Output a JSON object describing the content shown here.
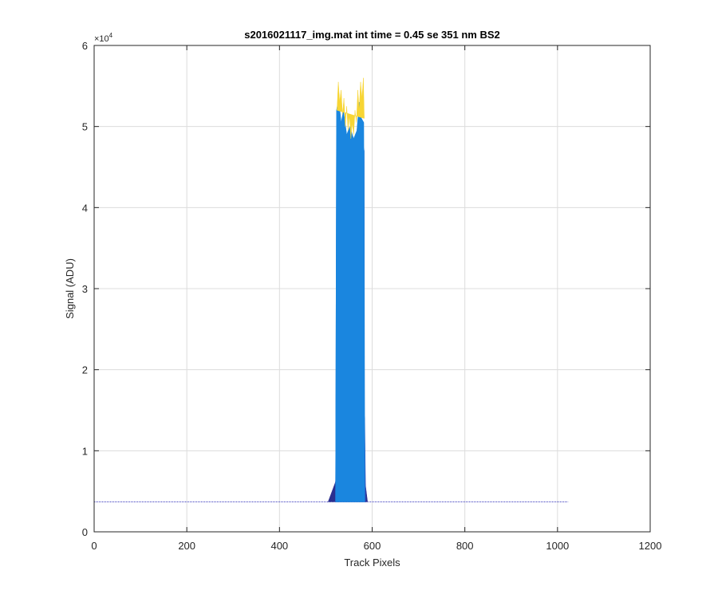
{
  "chart_data": {
    "type": "area",
    "title": "s2016021117_img.mat int time = 0.45 se  351 nm BS2",
    "xlabel": "Track Pixels",
    "ylabel": "Signal (ADU)",
    "xlim": [
      0,
      1200
    ],
    "ylim": [
      0,
      60000
    ],
    "y_exponent_label": "×10",
    "y_exponent_power": "4",
    "xticks": [
      0,
      200,
      400,
      600,
      800,
      1000,
      1200
    ],
    "xtick_labels": [
      "0",
      "200",
      "400",
      "600",
      "800",
      "1000",
      "1200"
    ],
    "yticks": [
      0,
      10000,
      20000,
      30000,
      40000,
      50000,
      60000
    ],
    "ytick_labels": [
      "0",
      "1",
      "2",
      "3",
      "4",
      "5",
      "6"
    ],
    "grid": true,
    "baseline": {
      "x": [
        0,
        1023
      ],
      "y": 3700,
      "color": "#2a2ab8"
    },
    "series": [
      {
        "color": "#2b2f8f",
        "x": [
          505,
          520,
          525,
          580,
          585,
          590
        ],
        "y": [
          3700,
          6000,
          7000,
          7000,
          6000,
          3700
        ]
      },
      {
        "color": "#2e4ab8",
        "x": [
          521,
          522,
          535,
          555,
          570,
          578,
          584,
          586
        ],
        "y": [
          3700,
          17000,
          15000,
          14000,
          14500,
          16500,
          14000,
          3700
        ]
      },
      {
        "color": "#1e73d4",
        "x": [
          521,
          523,
          530,
          545,
          560,
          575,
          583,
          584
        ],
        "y": [
          3700,
          49000,
          50000,
          47000,
          47500,
          49500,
          47000,
          3700
        ]
      },
      {
        "color": "#1a86df",
        "x": [
          521,
          523,
          528,
          533,
          538,
          545,
          552,
          560,
          567,
          572,
          577,
          582,
          584
        ],
        "y": [
          3700,
          52000,
          53500,
          50500,
          52000,
          49000,
          50000,
          48500,
          49500,
          53000,
          51000,
          50500,
          3700
        ]
      },
      {
        "color": "#f7d534",
        "x": [
          524,
          527,
          530,
          533,
          536,
          539,
          542,
          545,
          548,
          551,
          554,
          557,
          560,
          563,
          566,
          569,
          572,
          575,
          578,
          581,
          583
        ],
        "y": [
          52000,
          55500,
          53000,
          54500,
          51500,
          53500,
          50000,
          52500,
          49500,
          51500,
          48500,
          50500,
          49000,
          52000,
          50500,
          54500,
          52000,
          55500,
          53500,
          56000,
          51000
        ]
      }
    ]
  }
}
